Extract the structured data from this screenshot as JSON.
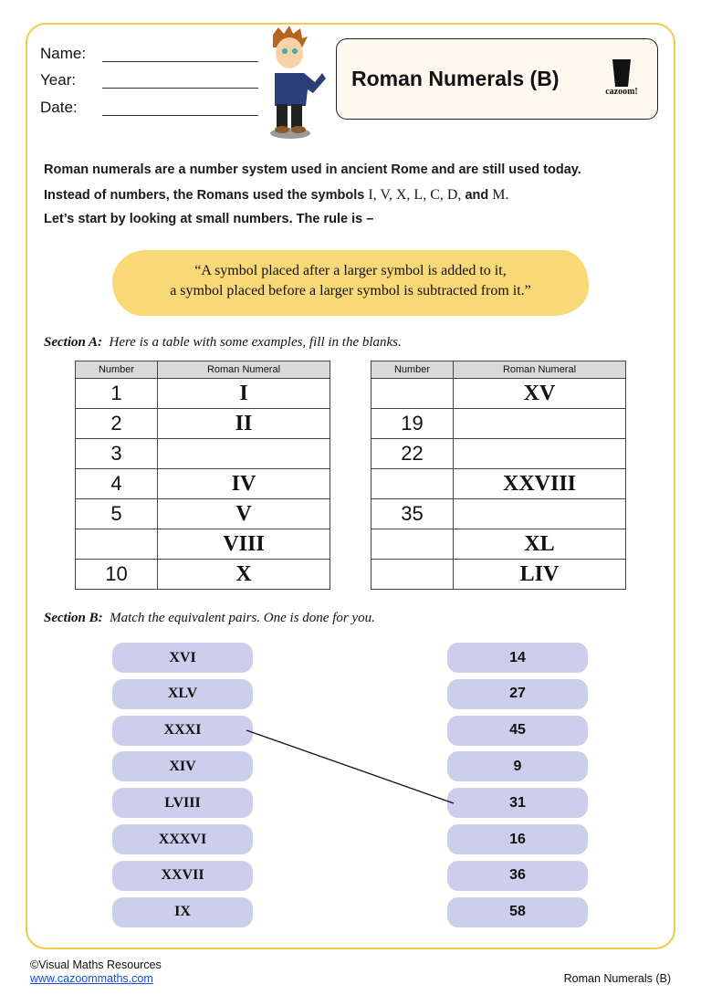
{
  "header": {
    "name_label": "Name:",
    "year_label": "Year:",
    "date_label": "Date:",
    "title": "Roman Numerals (B)",
    "logo_text": "cazoom!"
  },
  "intro": {
    "line1": "Roman numerals are a number system used in ancient Rome and are still used today.",
    "line2_prefix": "Instead of numbers, the Romans used the symbols ",
    "line2_symbols": "I, V, X, L, C, D,",
    "line2_and": " and ",
    "line2_last": "M",
    ".": ".",
    "line3": "Let’s start by looking at small numbers. The rule is –"
  },
  "rule": {
    "line1": "“A symbol placed after a larger symbol is added to it,",
    "line2": "a symbol placed before a larger symbol is subtracted from it.”"
  },
  "section_a": {
    "label": "Section A:",
    "instruction": "Here is a table with some examples, fill in the blanks.",
    "headers": [
      "Number",
      "Roman Numeral"
    ],
    "table1": [
      [
        "1",
        "I"
      ],
      [
        "2",
        "II"
      ],
      [
        "3",
        ""
      ],
      [
        "4",
        "IV"
      ],
      [
        "5",
        "V"
      ],
      [
        "",
        "VIII"
      ],
      [
        "10",
        "X"
      ]
    ],
    "table2": [
      [
        "",
        "XV"
      ],
      [
        "19",
        ""
      ],
      [
        "22",
        ""
      ],
      [
        "",
        "XXVIII"
      ],
      [
        "35",
        ""
      ],
      [
        "",
        "XL"
      ],
      [
        "",
        "LIV"
      ]
    ]
  },
  "section_b": {
    "label": "Section B:",
    "instruction": "Match the equivalent pairs. One is done for you.",
    "left": [
      "XVI",
      "XLV",
      "XXXI",
      "XIV",
      "LVIII",
      "XXXVI",
      "XXVII",
      "IX"
    ],
    "right": [
      "14",
      "27",
      "45",
      "9",
      "31",
      "16",
      "36",
      "58"
    ],
    "example_match": [
      "XXXI",
      "31"
    ]
  },
  "footer": {
    "copyright": "©Visual Maths Resources",
    "link": "www.cazoommaths.com",
    "title": "Roman Numerals (B)"
  },
  "colors": {
    "border": "#f2c94c",
    "quote_bg": "#f8d877",
    "pill": "#cbcfeb",
    "link": "#1a4fd6"
  }
}
